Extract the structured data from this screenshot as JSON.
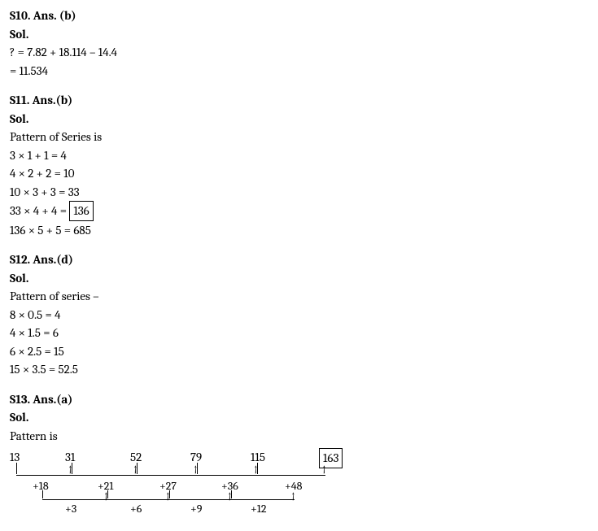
{
  "s10": {
    "header": "S10. Ans. (b)",
    "sol": "Sol.",
    "line1": "? = 7.82 + 18.114 – 14.4",
    "line2": "= 11.534"
  },
  "s11": {
    "header": "S11. Ans.(b)",
    "sol": "Sol.",
    "line1": "Pattern of Series is",
    "line2": "3 × 1 + 1 = 4",
    "line3": "4 × 2 + 2 = 10",
    "line4": "10 × 3 + 3 = 33",
    "line5a": "33 × 4 + 4 = ",
    "line5b": "136",
    "line6": "136 × 5 + 5 = 685"
  },
  "s12": {
    "header": "S12. Ans.(d)",
    "sol": "Sol.",
    "line1": "Pattern of series –",
    "line2": "8 × 0.5 = 4",
    "line3": "4 × 1.5 = 6",
    "line4": "6 × 2.5 = 15",
    "line5": "15 × 3.5 = 52.5"
  },
  "s13": {
    "header": "S13. Ans.(a)",
    "sol": "Sol.",
    "line1": "Pattern is",
    "series": {
      "numbers": [
        "13",
        "31",
        "52",
        "79",
        "115",
        "163"
      ],
      "boxed_index": 5,
      "positions_x": [
        0,
        68,
        148,
        222,
        296,
        380
      ],
      "diffs1": [
        "+18",
        "+21",
        "+27",
        "+36",
        "+48"
      ],
      "diffs1_x": [
        28,
        108,
        184,
        260,
        338
      ],
      "diffs2": [
        "+3",
        "+6",
        "+9",
        "+12"
      ],
      "diffs2_x": [
        68,
        148,
        222,
        296
      ]
    }
  }
}
